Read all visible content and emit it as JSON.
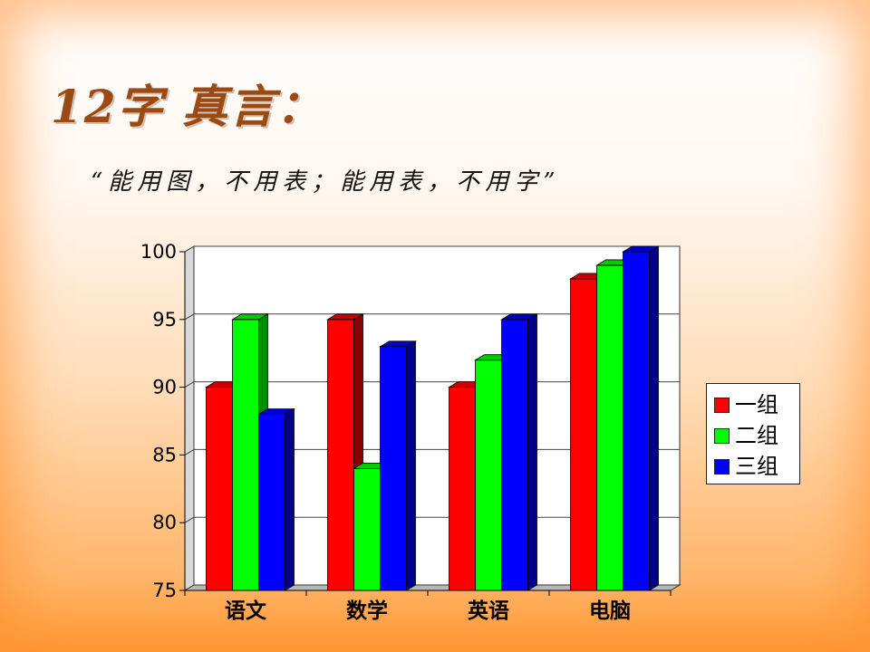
{
  "slide": {
    "title": "12字 真言：",
    "subtitle": "“能用图，不用表；能用表，不用字”"
  },
  "chart_data": {
    "type": "bar",
    "categories": [
      "语文",
      "数学",
      "英语",
      "电脑"
    ],
    "series": [
      {
        "name": "一组",
        "color": "#ff0000",
        "values": [
          90,
          95,
          90,
          98
        ]
      },
      {
        "name": "二组",
        "color": "#00ff00",
        "values": [
          95,
          84,
          92,
          99
        ]
      },
      {
        "name": "三组",
        "color": "#0000ff",
        "values": [
          88,
          93,
          95,
          100
        ]
      }
    ],
    "title": "",
    "xlabel": "",
    "ylabel": "",
    "ylim": [
      75,
      100
    ],
    "yticks": [
      75,
      80,
      85,
      90,
      95,
      100
    ],
    "grid": true,
    "legend_position": "right"
  }
}
